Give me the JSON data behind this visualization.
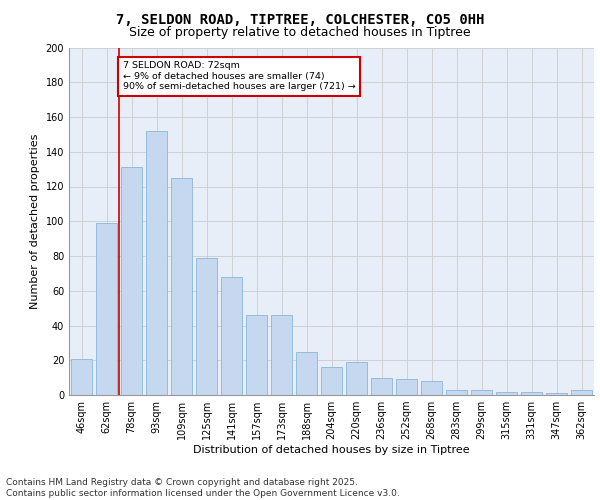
{
  "title_line1": "7, SELDON ROAD, TIPTREE, COLCHESTER, CO5 0HH",
  "title_line2": "Size of property relative to detached houses in Tiptree",
  "xlabel": "Distribution of detached houses by size in Tiptree",
  "ylabel": "Number of detached properties",
  "categories": [
    "46sqm",
    "62sqm",
    "78sqm",
    "93sqm",
    "109sqm",
    "125sqm",
    "141sqm",
    "157sqm",
    "173sqm",
    "188sqm",
    "204sqm",
    "220sqm",
    "236sqm",
    "252sqm",
    "268sqm",
    "283sqm",
    "299sqm",
    "315sqm",
    "331sqm",
    "347sqm",
    "362sqm"
  ],
  "values": [
    21,
    99,
    131,
    152,
    125,
    79,
    68,
    46,
    46,
    25,
    16,
    19,
    10,
    9,
    8,
    3,
    3,
    2,
    2,
    1,
    3
  ],
  "bar_color": "#c5d8f0",
  "bar_edge_color": "#7aafd4",
  "grid_color": "#cccccc",
  "background_color": "#e8eef8",
  "vline_x_index": 1.5,
  "vline_color": "#cc0000",
  "annotation_text": "7 SELDON ROAD: 72sqm\n← 9% of detached houses are smaller (74)\n90% of semi-detached houses are larger (721) →",
  "annotation_box_color": "#ffffff",
  "annotation_box_edge": "#cc0000",
  "ylim": [
    0,
    200
  ],
  "yticks": [
    0,
    20,
    40,
    60,
    80,
    100,
    120,
    140,
    160,
    180,
    200
  ],
  "footer": "Contains HM Land Registry data © Crown copyright and database right 2025.\nContains public sector information licensed under the Open Government Licence v3.0.",
  "title_fontsize": 10,
  "subtitle_fontsize": 9,
  "axis_label_fontsize": 8,
  "tick_fontsize": 7,
  "footer_fontsize": 6.5
}
